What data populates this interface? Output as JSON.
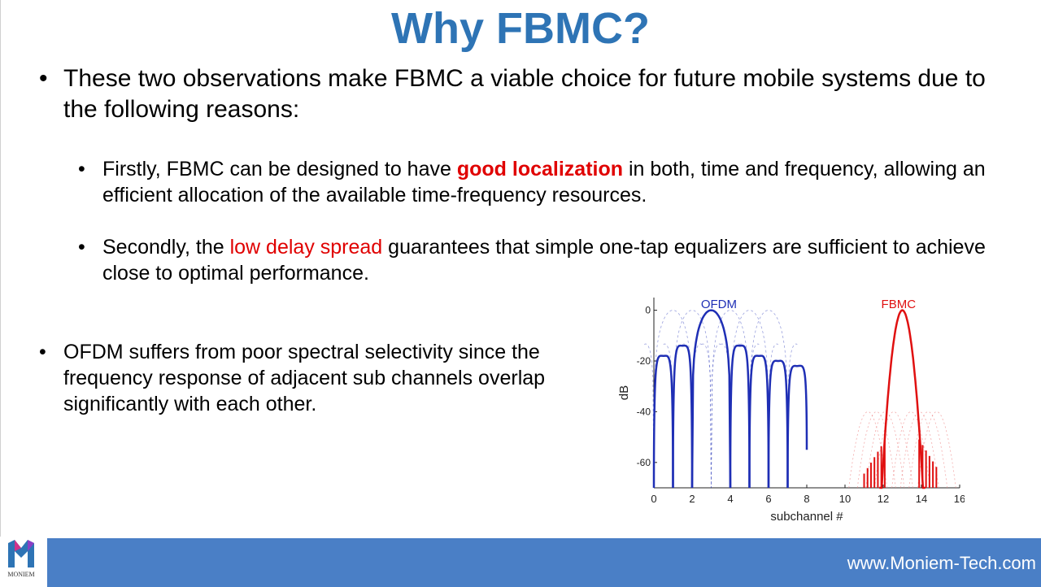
{
  "slide": {
    "title": "Why FBMC?",
    "bullets": {
      "b1": "These two observations make FBMC a viable choice for future mobile systems due to the following reasons:",
      "b2_before": "Firstly, FBMC can be designed to have ",
      "b2_highlight": "good localization",
      "b2_after": " in both, time and frequency, allowing an efficient allocation of the available time-frequency resources.",
      "b3_before": "Secondly, the ",
      "b3_highlight": "low delay spread",
      "b3_after": " guarantees that simple one-tap equalizers are sufficient to achieve close to optimal performance.",
      "b4": "OFDM suffers from poor spectral selectivity since the frequency response of adjacent sub channels overlap significantly with each other."
    },
    "bullet_glyph": "•"
  },
  "chart_data": {
    "type": "line",
    "xlabel": "subchannel #",
    "ylabel": "dB",
    "xlim": [
      0,
      16
    ],
    "ylim": [
      -70,
      5
    ],
    "xticks": [
      "0",
      "2",
      "4",
      "6",
      "8",
      "10",
      "12",
      "14",
      "16"
    ],
    "yticks": [
      "0",
      "-20",
      "-40",
      "-60"
    ],
    "annotations": [
      "OFDM",
      "FBMC"
    ],
    "series": [
      {
        "name": "OFDM",
        "color": "#1f2fb5",
        "main_lobe_center": 3,
        "main_lobe_peak_db": 0,
        "side_lobe_peaks": [
          {
            "x": 0.5,
            "y": -18
          },
          {
            "x": 1.5,
            "y": -14
          },
          {
            "x": 2.5,
            "y": -9
          },
          {
            "x": 3.5,
            "y": -9
          },
          {
            "x": 4.5,
            "y": -14
          },
          {
            "x": 5.5,
            "y": -18
          },
          {
            "x": 6.5,
            "y": -20
          },
          {
            "x": 7.5,
            "y": -22
          }
        ],
        "nulls": [
          0,
          1,
          2,
          4,
          5,
          6,
          7
        ]
      },
      {
        "name": "FBMC",
        "color": "#e01010",
        "main_lobe_center": 13,
        "main_lobe_peak_db": 0,
        "main_lobe_edges": [
          12,
          14
        ]
      }
    ]
  },
  "footer": {
    "url": "www.Moniem-Tech.com",
    "logo_text": "MONIEM",
    "bar_color": "#4a7fc6"
  }
}
